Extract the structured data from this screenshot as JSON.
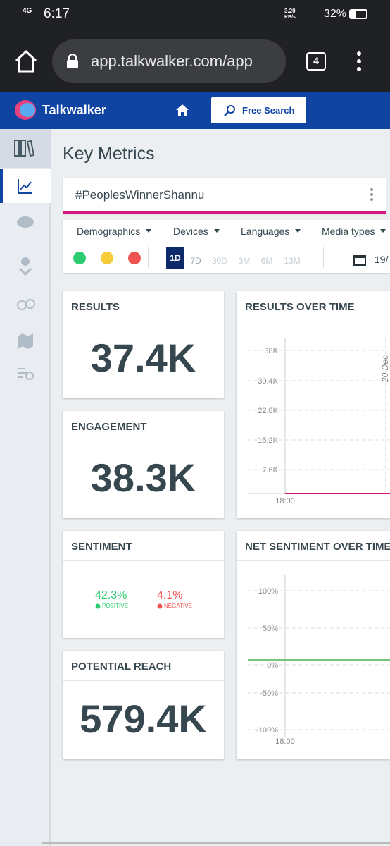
{
  "status_bar": {
    "network": "4G",
    "time": "6:17",
    "speed": "3.20",
    "speed_unit": "KB/s",
    "battery": "32%"
  },
  "browser": {
    "url": "app.talkwalker.com/app",
    "tabs": "4"
  },
  "app_header": {
    "brand": "Talkwalker",
    "search_button": "Free Search"
  },
  "page": {
    "title": "Key Metrics",
    "query": "#PeoplesWinnerShannu",
    "filters": [
      "Demographics",
      "Devices",
      "Languages",
      "Media types"
    ],
    "time_ranges": [
      "1D",
      "7D",
      "30D",
      "3M",
      "6M",
      "13M"
    ],
    "date": "19/"
  },
  "cards": {
    "results": {
      "title": "RESULTS",
      "value": "37.4K"
    },
    "engagement": {
      "title": "ENGAGEMENT",
      "value": "38.3K"
    },
    "sentiment": {
      "title": "SENTIMENT",
      "positive": {
        "value": "42.3%",
        "label": "POSITIVE"
      },
      "negative": {
        "value": "4.1%",
        "label": "NEGATIVE"
      }
    },
    "potential_reach": {
      "title": "POTENTIAL REACH",
      "value": "579.4K"
    }
  },
  "panels": {
    "results_over_time": {
      "title": "RESULTS OVER TIME",
      "y_labels": [
        "38K",
        "30.4K",
        "22.8K",
        "15.2K",
        "7.6K"
      ],
      "x_label": "18:00",
      "date_label": "20 Dec"
    },
    "net_sentiment_over_time": {
      "title": "NET SENTIMENT OVER TIME",
      "y_labels": [
        "100%",
        "50%",
        "0%",
        "-50%",
        "-100%"
      ],
      "x_label": "18:00"
    }
  }
}
